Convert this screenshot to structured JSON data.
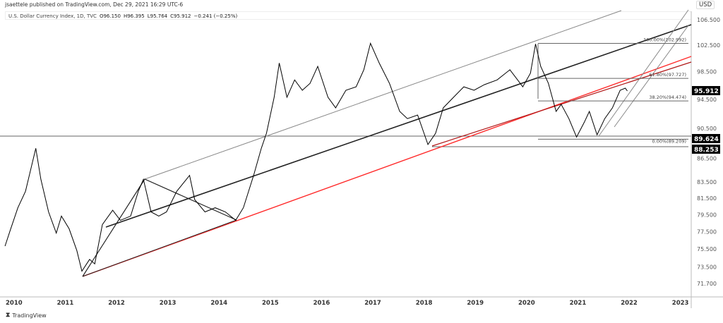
{
  "header": {
    "published": "jsaettele published on TradingView.com, Dec 29, 2021 16:29 UTC-6",
    "symbol": "U.S. Dollar Currency Index, 1D, TVC",
    "open": "O96.150",
    "high": "H96.395",
    "low": "L95.764",
    "close": "C95.912",
    "change": "−0.241 (−0.25%)"
  },
  "currency_button": "USD",
  "footer": {
    "brand": "TradingView"
  },
  "colors": {
    "price": "#000000",
    "trend_red": "#ff2b2b",
    "trend_darkred": "#b01818",
    "label_bg": "#000000"
  },
  "chart_data": {
    "type": "line",
    "title": "U.S. Dollar Currency Index, 1D, TVC",
    "y_scale": "log",
    "ylim": [
      71.0,
      108.0
    ],
    "y_ticks": [
      "106.500",
      "102.500",
      "98.500",
      "94.500",
      "90.500",
      "86.500",
      "83.500",
      "81.500",
      "79.500",
      "77.500",
      "75.500",
      "73.500",
      "71.700"
    ],
    "x_ticks": [
      "2010",
      "2011",
      "2012",
      "2013",
      "2014",
      "2015",
      "2016",
      "2017",
      "2018",
      "2019",
      "2020",
      "2021",
      "2022",
      "2023"
    ],
    "price_labels": {
      "last": "95.912",
      "level1": "89.624",
      "level2": "88.253"
    },
    "fib_levels": [
      {
        "label": "100.00%(102.992)",
        "value": 102.992
      },
      {
        "label": "61.80%(97.727)",
        "value": 97.727
      },
      {
        "label": "38.20%(94.474)",
        "value": 94.474
      },
      {
        "label": "0.00%(89.209)",
        "value": 89.209
      }
    ],
    "series": [
      {
        "x": [
          2009.85,
          2009.95,
          2010.1,
          2010.25,
          2010.45,
          2010.55,
          2010.7,
          2010.85,
          2010.95,
          2011.1,
          2011.25,
          2011.35,
          2011.5,
          2011.6,
          2011.75,
          2011.95,
          2012.1,
          2012.3,
          2012.45,
          2012.55,
          2012.7,
          2012.85,
          2013.0,
          2013.2,
          2013.45,
          2013.55,
          2013.75,
          2013.95,
          2014.15,
          2014.35,
          2014.5,
          2014.7,
          2014.85,
          2014.95,
          2015.1,
          2015.2,
          2015.35,
          2015.5,
          2015.65,
          2015.8,
          2015.95,
          2016.15,
          2016.3,
          2016.5,
          2016.7,
          2016.85,
          2016.98,
          2017.15,
          2017.35,
          2017.55,
          2017.7,
          2017.9,
          2018.1,
          2018.25,
          2018.4,
          2018.6,
          2018.8,
          2019.0,
          2019.2,
          2019.45,
          2019.7,
          2019.85,
          2019.95,
          2020.1,
          2020.2,
          2020.3,
          2020.45,
          2020.6,
          2020.7,
          2020.85,
          2021.0,
          2021.15,
          2021.25,
          2021.4,
          2021.55,
          2021.7,
          2021.85,
          2021.95,
          2021.99
        ],
        "values": [
          76.0,
          77.8,
          80.5,
          82.5,
          88.0,
          84.0,
          80.0,
          77.5,
          79.5,
          78.0,
          75.5,
          73.2,
          74.5,
          74.0,
          78.5,
          80.2,
          79.0,
          79.5,
          82.5,
          84.0,
          80.0,
          79.5,
          80.0,
          82.5,
          84.5,
          81.5,
          80.0,
          80.5,
          80.0,
          79.0,
          80.5,
          84.5,
          88.0,
          90.0,
          95.0,
          100.0,
          95.0,
          97.5,
          96.0,
          97.0,
          99.5,
          95.0,
          93.5,
          96.0,
          96.5,
          99.0,
          103.0,
          100.0,
          97.0,
          93.0,
          92.0,
          92.5,
          88.5,
          90.0,
          93.5,
          95.0,
          96.5,
          96.0,
          96.8,
          97.5,
          99.0,
          97.5,
          96.5,
          98.5,
          102.9,
          99.5,
          97.0,
          93.0,
          94.0,
          92.0,
          89.5,
          91.5,
          93.0,
          89.8,
          92.0,
          93.5,
          96.0,
          96.3,
          95.9
        ]
      }
    ]
  }
}
